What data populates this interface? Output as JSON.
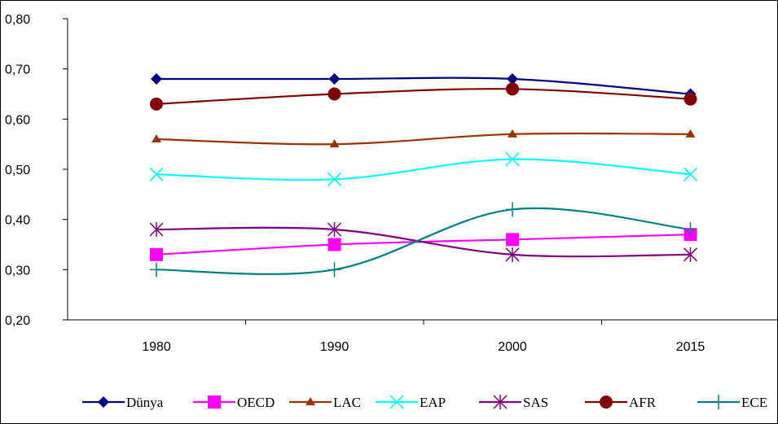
{
  "chart_data": {
    "type": "line",
    "categories": [
      "1980",
      "1990",
      "2000",
      "2015"
    ],
    "ylim": [
      0.2,
      0.8
    ],
    "yticks": [
      "0,20",
      "0,30",
      "0,40",
      "0,50",
      "0,60",
      "0,70",
      "0,80"
    ],
    "grid": false,
    "legend_position": "bottom",
    "series": [
      {
        "name": "Dünya",
        "values": [
          0.68,
          0.68,
          0.68,
          0.65
        ],
        "color": "#000080",
        "marker": "diamond"
      },
      {
        "name": "OECD",
        "values": [
          0.33,
          0.35,
          0.36,
          0.37
        ],
        "color": "#ff00ff",
        "marker": "square"
      },
      {
        "name": "LAC",
        "values": [
          0.56,
          0.55,
          0.57,
          0.57
        ],
        "color": "#993300",
        "marker": "triangle"
      },
      {
        "name": "EAP",
        "values": [
          0.49,
          0.48,
          0.52,
          0.49
        ],
        "color": "#00ffff",
        "marker": "x"
      },
      {
        "name": "SAS",
        "values": [
          0.38,
          0.38,
          0.33,
          0.33
        ],
        "color": "#800080",
        "marker": "asterisk"
      },
      {
        "name": "AFR",
        "values": [
          0.63,
          0.65,
          0.66,
          0.64
        ],
        "color": "#800000",
        "marker": "circle"
      },
      {
        "name": "ECE",
        "values": [
          0.3,
          0.3,
          0.42,
          0.38
        ],
        "color": "#008080",
        "marker": "plus"
      }
    ]
  }
}
